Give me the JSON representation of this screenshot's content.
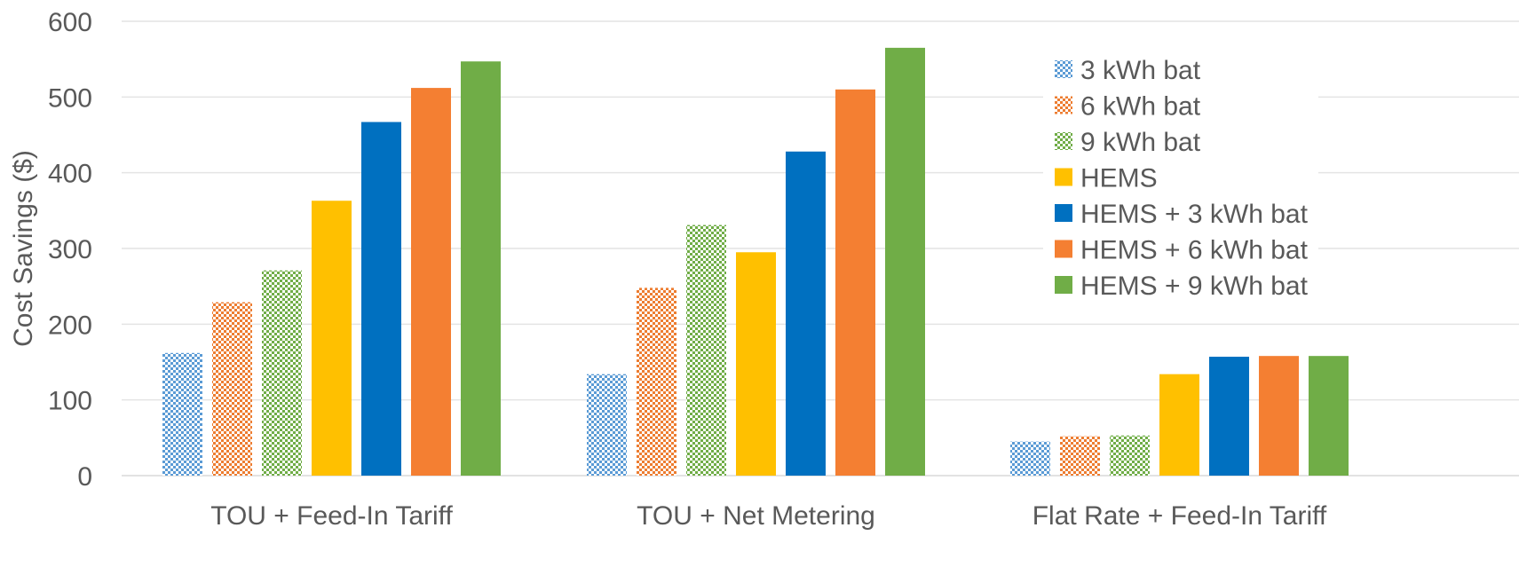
{
  "chart_data": {
    "type": "bar",
    "title": "",
    "xlabel": "",
    "ylabel": "Cost Savings ($)",
    "ylim": [
      0,
      600
    ],
    "yticks": [
      0,
      100,
      200,
      300,
      400,
      500,
      600
    ],
    "grid": true,
    "legend_position": "top-right",
    "categories": [
      "TOU + Feed-In Tariff",
      "TOU + Net Metering",
      "Flat Rate + Feed-In Tariff"
    ],
    "series": [
      {
        "name": "3 kWh bat",
        "values": [
          162,
          134,
          45
        ],
        "color": "#5B9BD5",
        "pattern": "checker"
      },
      {
        "name": "6 kWh bat",
        "values": [
          229,
          248,
          52
        ],
        "color": "#ED7D31",
        "pattern": "checker"
      },
      {
        "name": "9 kWh bat",
        "values": [
          271,
          331,
          53
        ],
        "color": "#70AD47",
        "pattern": "checker"
      },
      {
        "name": "HEMS",
        "values": [
          363,
          295,
          134
        ],
        "color": "#FFC000",
        "pattern": "solid"
      },
      {
        "name": "HEMS + 3 kWh bat",
        "values": [
          467,
          428,
          157
        ],
        "color": "#0070C0",
        "pattern": "solid"
      },
      {
        "name": "HEMS + 6 kWh bat",
        "values": [
          512,
          510,
          158
        ],
        "color": "#F47F32",
        "pattern": "solid"
      },
      {
        "name": "HEMS + 9 kWh bat",
        "values": [
          547,
          565,
          158
        ],
        "color": "#70AD47",
        "pattern": "solid"
      }
    ]
  }
}
